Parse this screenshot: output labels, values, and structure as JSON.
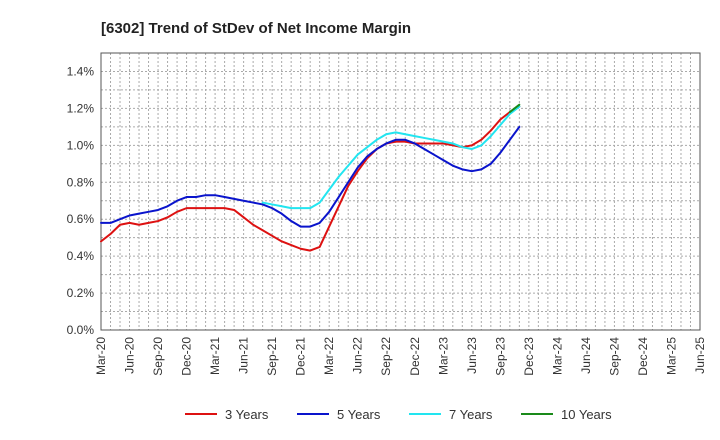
{
  "chart_data": {
    "type": "line",
    "title": "[6302]  Trend of StDev of Net Income Margin",
    "xlabel": "",
    "ylabel": "",
    "x_tick_labels": [
      "Mar-20",
      "Jun-20",
      "Sep-20",
      "Dec-20",
      "Mar-21",
      "Jun-21",
      "Sep-21",
      "Dec-21",
      "Mar-22",
      "Jun-22",
      "Sep-22",
      "Dec-22",
      "Mar-23",
      "Jun-23",
      "Sep-23",
      "Dec-23",
      "Mar-24",
      "Jun-24",
      "Sep-24",
      "Dec-24",
      "Mar-25",
      "Jun-25"
    ],
    "y_tick_labels": [
      "0.0%",
      "0.2%",
      "0.4%",
      "0.6%",
      "0.8%",
      "1.0%",
      "1.2%",
      "1.4%"
    ],
    "ylim": [
      0,
      1.5
    ],
    "y_unit": "%",
    "grid": true,
    "legend_position": "bottom",
    "series": [
      {
        "name": "3 Years",
        "color": "#dd1111",
        "values": [
          0.48,
          0.52,
          0.57,
          0.58,
          0.57,
          0.58,
          0.59,
          0.61,
          0.64,
          0.66,
          0.66,
          0.66,
          0.66,
          0.66,
          0.65,
          0.61,
          0.57,
          0.54,
          0.51,
          0.48,
          0.46,
          0.44,
          0.43,
          0.45,
          0.56,
          0.67,
          0.78,
          0.86,
          0.93,
          0.98,
          1.01,
          1.02,
          1.02,
          1.01,
          1.01,
          1.01,
          1.01,
          1.0,
          0.99,
          1.0,
          1.03,
          1.08,
          1.14,
          1.18,
          1.21
        ]
      },
      {
        "name": "5 Years",
        "color": "#0a14cc",
        "values": [
          0.58,
          0.58,
          0.6,
          0.62,
          0.63,
          0.64,
          0.65,
          0.67,
          0.7,
          0.72,
          0.72,
          0.73,
          0.73,
          0.72,
          0.71,
          0.7,
          0.69,
          0.68,
          0.66,
          0.63,
          0.59,
          0.56,
          0.56,
          0.58,
          0.64,
          0.72,
          0.8,
          0.88,
          0.94,
          0.98,
          1.01,
          1.03,
          1.03,
          1.01,
          0.98,
          0.95,
          0.92,
          0.89,
          0.87,
          0.86,
          0.87,
          0.9,
          0.96,
          1.03,
          1.1
        ]
      },
      {
        "name": "7 Years",
        "color": "#22e5f0",
        "values": [
          null,
          null,
          null,
          null,
          null,
          null,
          null,
          null,
          null,
          null,
          null,
          null,
          null,
          null,
          null,
          null,
          null,
          0.69,
          0.68,
          0.67,
          0.66,
          0.66,
          0.66,
          0.69,
          0.76,
          0.83,
          0.89,
          0.95,
          0.99,
          1.03,
          1.06,
          1.07,
          1.06,
          1.05,
          1.04,
          1.03,
          1.02,
          1.01,
          0.99,
          0.98,
          1.0,
          1.05,
          1.11,
          1.17,
          1.21
        ]
      },
      {
        "name": "10 Years",
        "color": "#1a8a1a",
        "values": [
          null,
          null,
          null,
          null,
          null,
          null,
          null,
          null,
          null,
          null,
          null,
          null,
          null,
          null,
          null,
          null,
          null,
          null,
          null,
          null,
          null,
          null,
          null,
          null,
          null,
          null,
          null,
          null,
          null,
          null,
          null,
          null,
          null,
          null,
          null,
          null,
          null,
          null,
          null,
          null,
          null,
          null,
          null,
          1.18,
          1.22
        ]
      }
    ]
  }
}
